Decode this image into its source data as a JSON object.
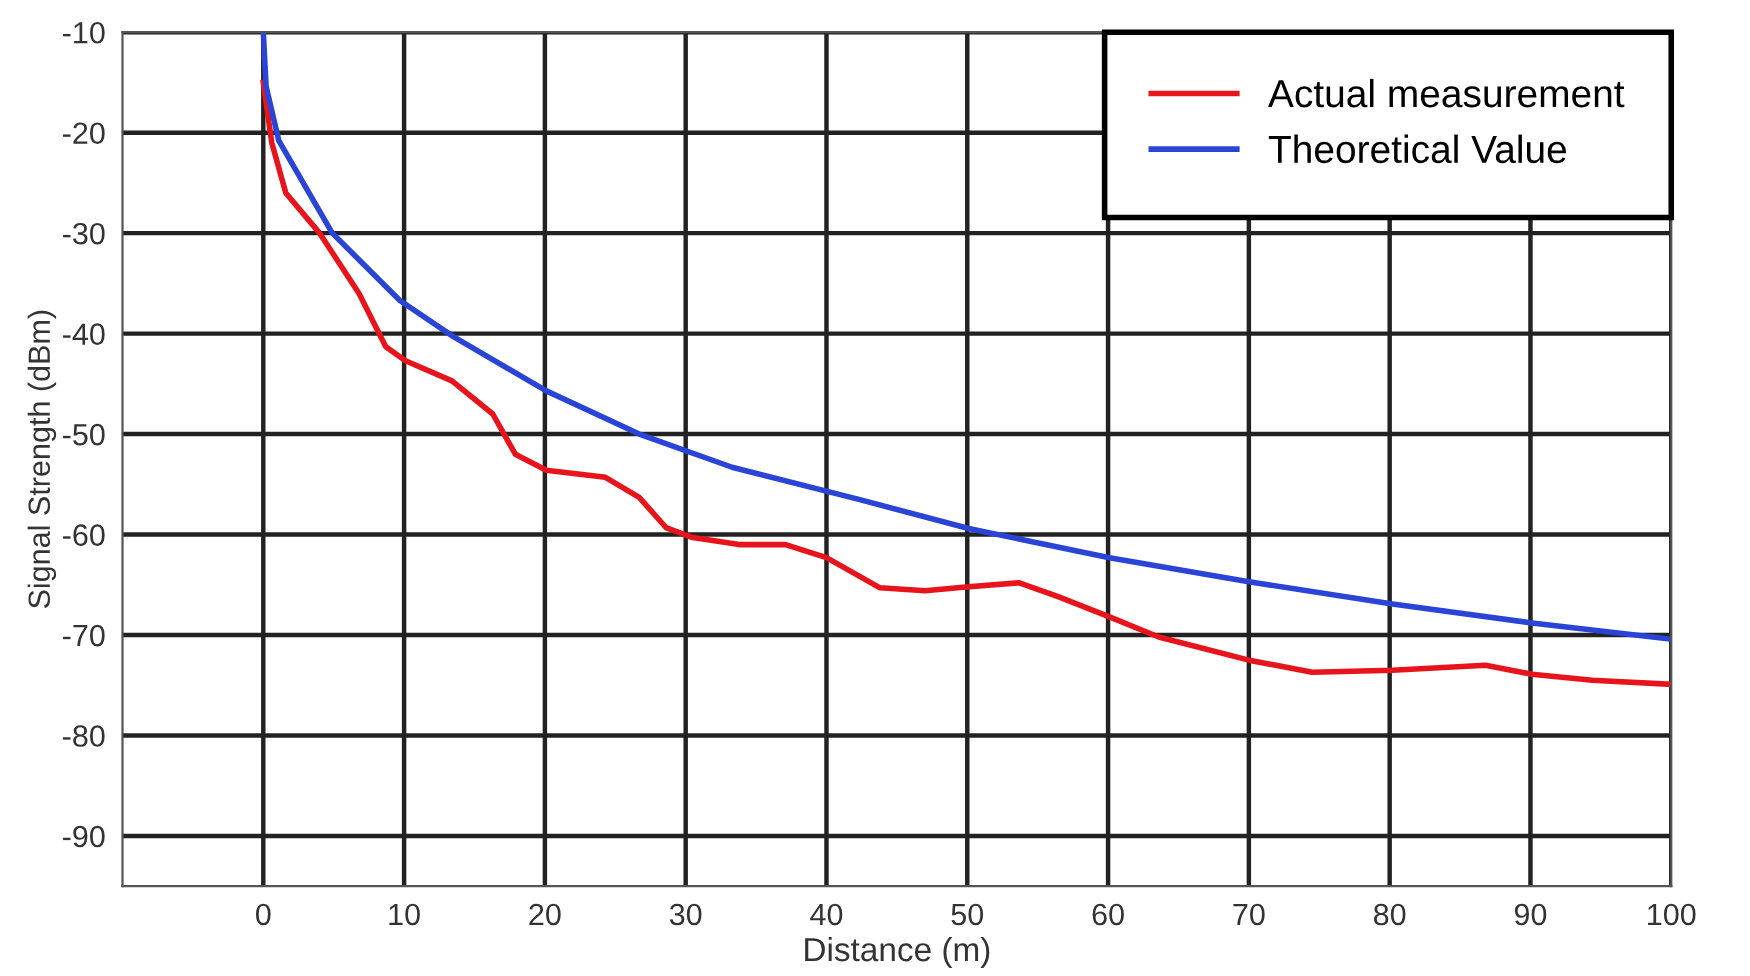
{
  "chart_data": {
    "type": "line",
    "xlabel": "Distance (m)",
    "ylabel": "Signal Strength (dBm)",
    "xlim": [
      -10,
      100
    ],
    "xticks": [
      0,
      10,
      20,
      30,
      40,
      50,
      60,
      70,
      80,
      90,
      100
    ],
    "ylim": [
      -95,
      -10
    ],
    "yticks": [
      -10,
      -20,
      -30,
      -40,
      -50,
      -60,
      -70,
      -80,
      -90
    ],
    "grid": true,
    "legend": "top right",
    "marker": "none",
    "line_style": "solid",
    "series": [
      {
        "name": "Actual measurement",
        "color": "#e8141c",
        "x": [
          0,
          0.3,
          0.6,
          1.6,
          4.0,
          6.8,
          8.7,
          10.1,
          13.4,
          16.3,
          17.9,
          20.1,
          24.3,
          26.7,
          28.6,
          30.5,
          33.8,
          37.1,
          40,
          43.8,
          47,
          50.1,
          53.7,
          56.5,
          60.1,
          63.6,
          70,
          74.5,
          80.2,
          86.8,
          90.1,
          94.4,
          99.9
        ],
        "values": [
          -15,
          -18,
          -21,
          -26,
          -30,
          -36,
          -41.3,
          -42.7,
          -44.7,
          -48,
          -52,
          -53.6,
          -54.3,
          -56.3,
          -59.3,
          -60.3,
          -61,
          -61,
          -62.3,
          -65.3,
          -65.6,
          -65.2,
          -64.8,
          -66.2,
          -68.2,
          -70.2,
          -72.5,
          -73.7,
          -73.5,
          -73,
          -73.9,
          -74.5,
          -74.9
        ]
      },
      {
        "name": "Theoretical Value",
        "color": "#2a44d8",
        "x": [
          0,
          0.2,
          1.1,
          4.9,
          9.7,
          13.5,
          20.1,
          26.7,
          33.3,
          42.3,
          50.1,
          60.1,
          70,
          80.2,
          90.1,
          99.9
        ],
        "values": [
          -10,
          -15.4,
          -20.8,
          -30,
          -36.7,
          -40.3,
          -45.7,
          -50,
          -53.3,
          -56.5,
          -59.4,
          -62.3,
          -64.7,
          -66.9,
          -68.8,
          -70.4
        ]
      }
    ]
  }
}
